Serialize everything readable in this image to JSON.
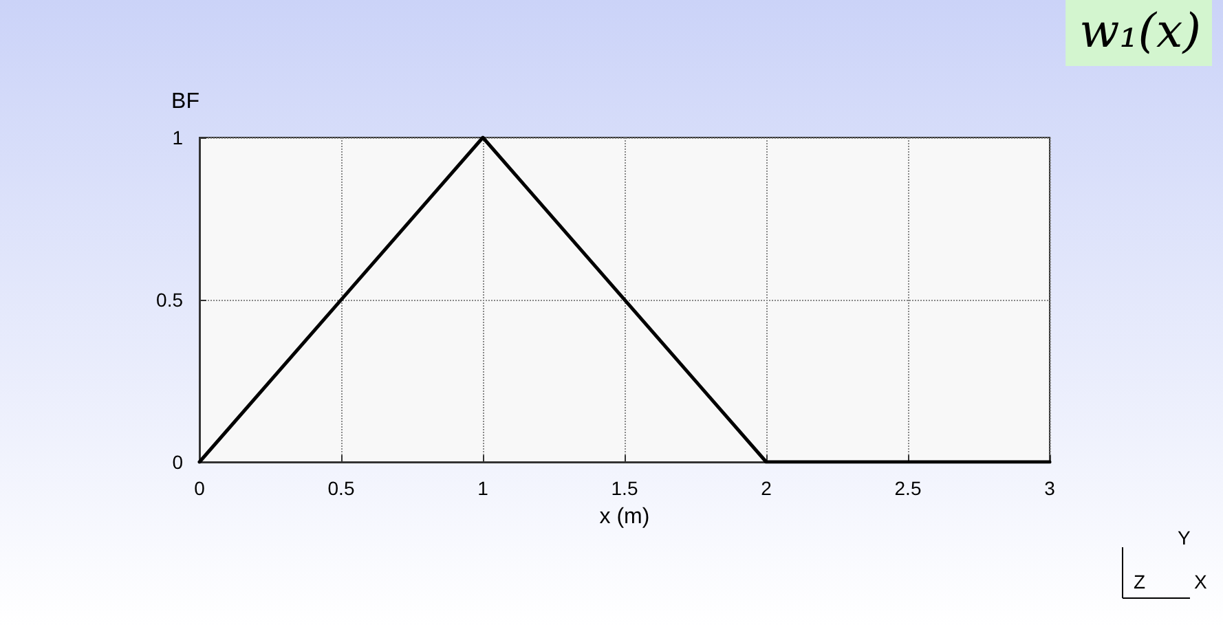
{
  "chart_data": {
    "type": "line",
    "title": "w₁(x)",
    "xlabel": "x (m)",
    "ylabel": "BF",
    "x": [
      0,
      1,
      2,
      3
    ],
    "series": [
      {
        "color": "#000000",
        "values": [
          0,
          1,
          0,
          0
        ]
      }
    ],
    "xlim": [
      0,
      3
    ],
    "xticks": [
      0,
      0.5,
      1,
      1.5,
      2,
      2.5,
      3
    ],
    "ylim": [
      0,
      1
    ],
    "yticks": [
      0,
      0.5,
      1
    ],
    "grid": true,
    "marker": "none",
    "line_style": "solid",
    "annotations": [
      "Y",
      "Z",
      "X"
    ]
  }
}
